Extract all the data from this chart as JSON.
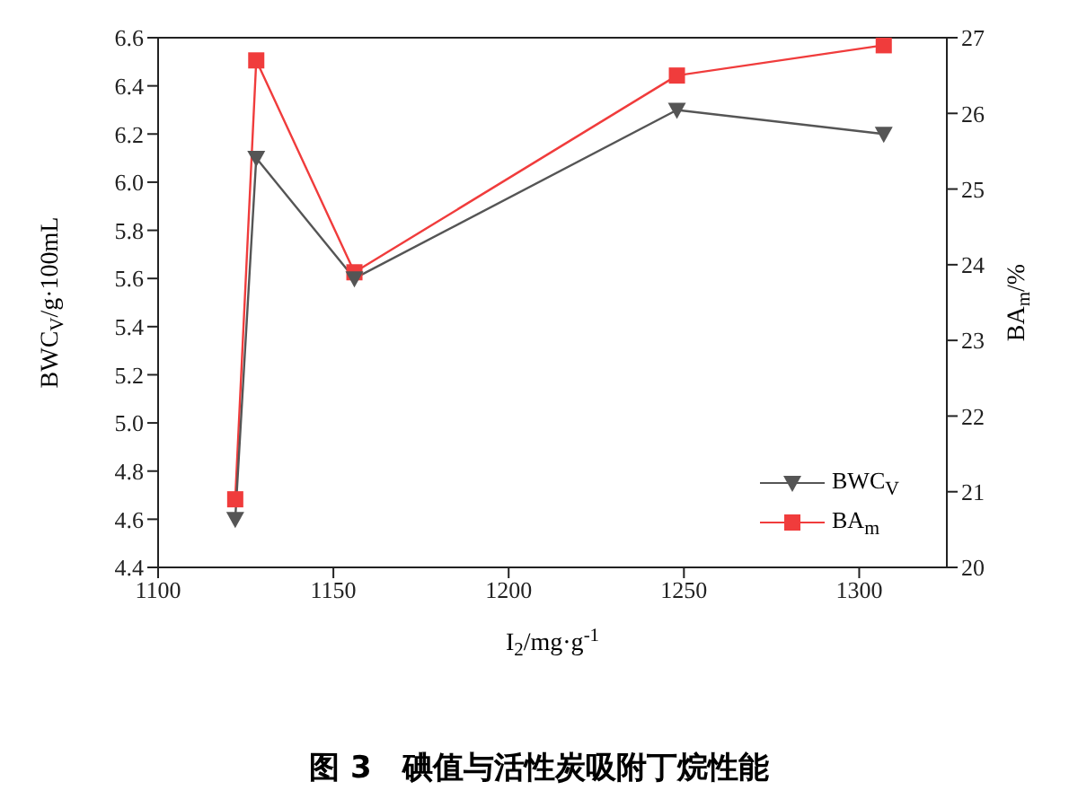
{
  "chart_data": {
    "type": "line",
    "title": "图 3　碘值与活性炭吸附丁烷性能",
    "xlabel": "I$_{2}$/mg·g$^{-1}$",
    "ylabel": "BWC$_{V}$/g·100mL",
    "y2label": "BA$_{m}$/%",
    "x": [
      1122,
      1128,
      1156,
      1248,
      1307
    ],
    "series": [
      {
        "name": "BWC$_{V}$",
        "color": "#555555",
        "marker": "triangle",
        "values": [
          4.6,
          6.1,
          5.6,
          6.3,
          6.2
        ]
      },
      {
        "name": "BA$_{m}$",
        "color": "#f03c3c",
        "marker": "square",
        "axis": "y2",
        "values": [
          20.9,
          26.7,
          23.9,
          26.5,
          26.9
        ]
      }
    ],
    "xlim": [
      1100,
      1325
    ],
    "xticks": [
      1100,
      1150,
      1200,
      1250,
      1300
    ],
    "ylim": [
      4.4,
      6.6
    ],
    "yticks": [
      4.4,
      4.6,
      4.8,
      {
        "value": 5,
        "label": "5.0"
      },
      5.2,
      5.4,
      5.6,
      5.8,
      {
        "value": 6,
        "label": "6.0"
      },
      6.2,
      6.4,
      6.6
    ],
    "y2lim": [
      20,
      27
    ],
    "y2ticks": [
      20,
      21,
      22,
      23,
      24,
      25,
      26,
      27
    ],
    "legend": "bottom right",
    "grid": false,
    "line_style": "solid"
  }
}
